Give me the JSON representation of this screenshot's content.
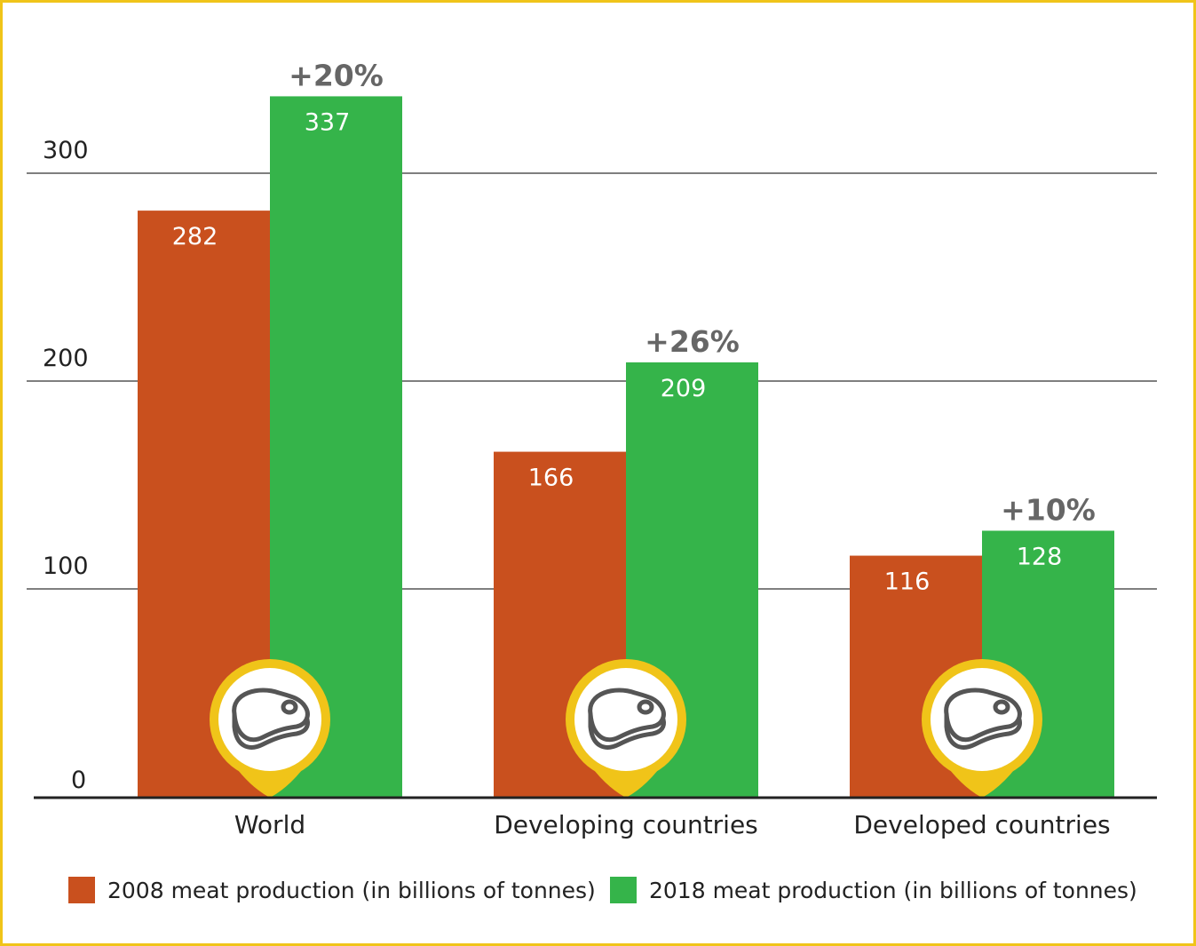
{
  "chart_data": {
    "type": "bar",
    "categories": [
      "World",
      "Developing countries",
      "Developed countries"
    ],
    "series": [
      {
        "name": "2008 meat production (in billions of tonnes)",
        "values": [
          282,
          166,
          116
        ],
        "color": "#c9501e"
      },
      {
        "name": "2018 meat production (in billions of tonnes)",
        "values": [
          337,
          209,
          128
        ],
        "color": "#35b44a"
      }
    ],
    "value_labels": {
      "series_0": [
        "282",
        "166",
        "116"
      ],
      "series_1": [
        "337",
        "209",
        "128"
      ]
    },
    "change_labels": [
      "+20%",
      "+26%",
      "+10%"
    ],
    "yticks": [
      0,
      100,
      200,
      300
    ],
    "ytick_labels": [
      "0",
      "100",
      "200",
      "300"
    ],
    "ylim": [
      0,
      300
    ],
    "grid": true,
    "legend_position": "bottom",
    "title": "",
    "xlabel": "",
    "ylabel": "",
    "icon": "steak-icon",
    "colors": {
      "frame": "#f0c419",
      "marker": "#f0c419",
      "grid": "#333333",
      "change_label": "#666666",
      "icon_stroke": "#555555"
    }
  }
}
